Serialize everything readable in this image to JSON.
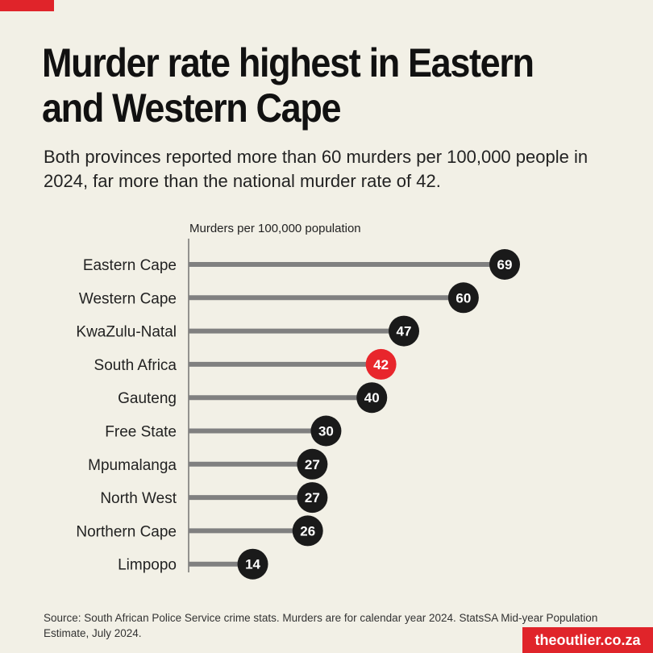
{
  "title": "Murder rate highest in Eastern and Western Cape",
  "subtitle": "Both provinces reported more than 60 murders per 100,000 people in 2024, far more than the national murder rate of 42.",
  "source": "Source: South African Police Service crime stats. Murders are for calendar year 2024. StatsSA Mid-year Population Estimate, July 2024.",
  "brand": "theoutlier.co.za",
  "colors": {
    "accent": "#e0242a",
    "bar": "#808080",
    "bubble": "#1a1a1a",
    "highlight": "#e8262c"
  },
  "chart_data": {
    "type": "bar",
    "orientation": "horizontal",
    "axis_label": "Murders per 100,000 population",
    "categories": [
      "Eastern Cape",
      "Western Cape",
      "KwaZulu-Natal",
      "South Africa",
      "Gauteng",
      "Free State",
      "Mpumalanga",
      "North West",
      "Northern Cape",
      "Limpopo"
    ],
    "values": [
      69,
      60,
      47,
      42,
      40,
      30,
      27,
      27,
      26,
      14
    ],
    "labels": [
      "69",
      "60",
      "47",
      "42",
      "40",
      "30",
      "27",
      "27",
      "26",
      "14"
    ],
    "highlight": "South Africa",
    "xlim": [
      0,
      70
    ],
    "grid": false
  }
}
